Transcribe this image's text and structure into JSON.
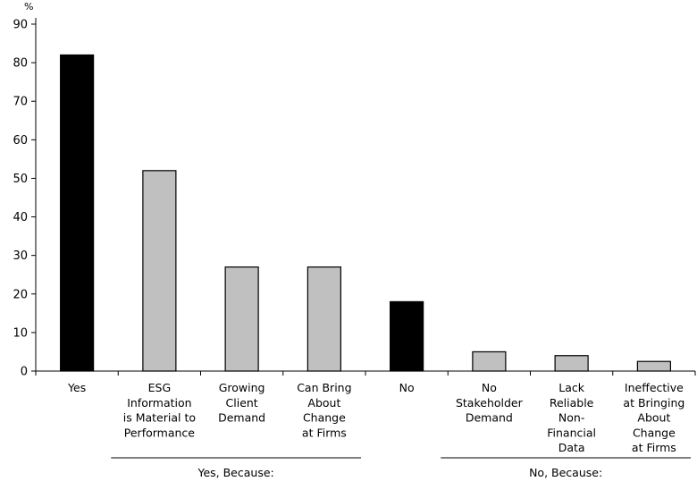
{
  "chart_data": {
    "type": "bar",
    "unit": "%",
    "ylim": [
      0,
      90
    ],
    "yticks": [
      0,
      10,
      20,
      30,
      40,
      50,
      60,
      70,
      80,
      90
    ],
    "categories": [
      [
        "Yes"
      ],
      [
        "ESG",
        "Information",
        "is Material to",
        "Performance"
      ],
      [
        "Growing",
        "Client",
        "Demand"
      ],
      [
        "Can Bring",
        "About",
        "Change",
        "at Firms"
      ],
      [
        "No"
      ],
      [
        "No",
        "Stakeholder",
        "Demand"
      ],
      [
        "Lack",
        "Reliable",
        "Non-",
        "Financial",
        "Data"
      ],
      [
        "Ineffective",
        "at Bringing",
        "About",
        "Change",
        "at Firms"
      ]
    ],
    "values": [
      82,
      52,
      27,
      27,
      18,
      5,
      4,
      2.5
    ],
    "colors": [
      "#000000",
      "#c0c0c0",
      "#c0c0c0",
      "#c0c0c0",
      "#000000",
      "#c0c0c0",
      "#c0c0c0",
      "#c0c0c0"
    ],
    "groups": [
      {
        "label": "Yes, Because:",
        "from": 1,
        "to": 3
      },
      {
        "label": "No, Because:",
        "from": 5,
        "to": 7
      }
    ],
    "grid": false,
    "legend": "none"
  }
}
